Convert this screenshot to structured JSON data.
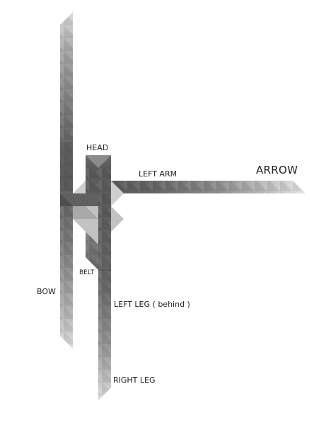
{
  "labels": {
    "head": "HEAD",
    "left_arm": "LEFT ARM",
    "arrow": "ARROW",
    "belt": "BELT",
    "bow": "BOW",
    "left_leg": "LEFT LEG ( behind )",
    "right_leg": "RIGHT LEG"
  },
  "colors": {
    "background": "#ffffff",
    "dark": "#5a5a5a",
    "mid": "#8a8a8a",
    "light": "#d8d8d8",
    "text": "#222222"
  }
}
